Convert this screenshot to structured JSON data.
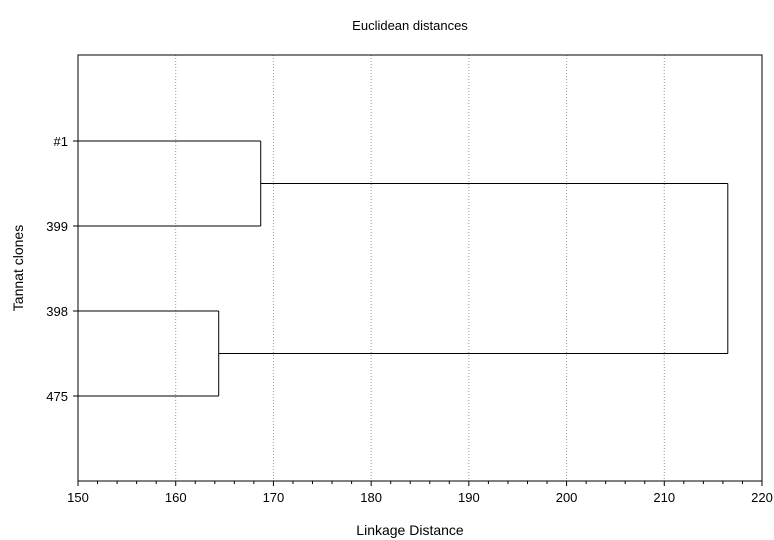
{
  "chart_data": {
    "type": "dendrogram",
    "title": "Euclidean distances",
    "xlabel": "Linkage Distance",
    "ylabel": "Tannat clones",
    "xlim": [
      150,
      220
    ],
    "x_ticks": [
      150,
      160,
      170,
      180,
      190,
      200,
      210,
      220
    ],
    "x_tick_labels": [
      "150",
      "160",
      "170",
      "180",
      "190",
      "200",
      "210",
      "220"
    ],
    "leaves": [
      "#1",
      "399",
      "398",
      "475"
    ],
    "merges": [
      {
        "left": "#1",
        "right": "399",
        "distance": 168.7
      },
      {
        "left": "398",
        "right": "475",
        "distance": 164.4
      },
      {
        "left": "#1,399",
        "right": "398,475",
        "distance": 216.5
      }
    ],
    "grid": "vertical dotted",
    "orientation": "horizontal"
  }
}
